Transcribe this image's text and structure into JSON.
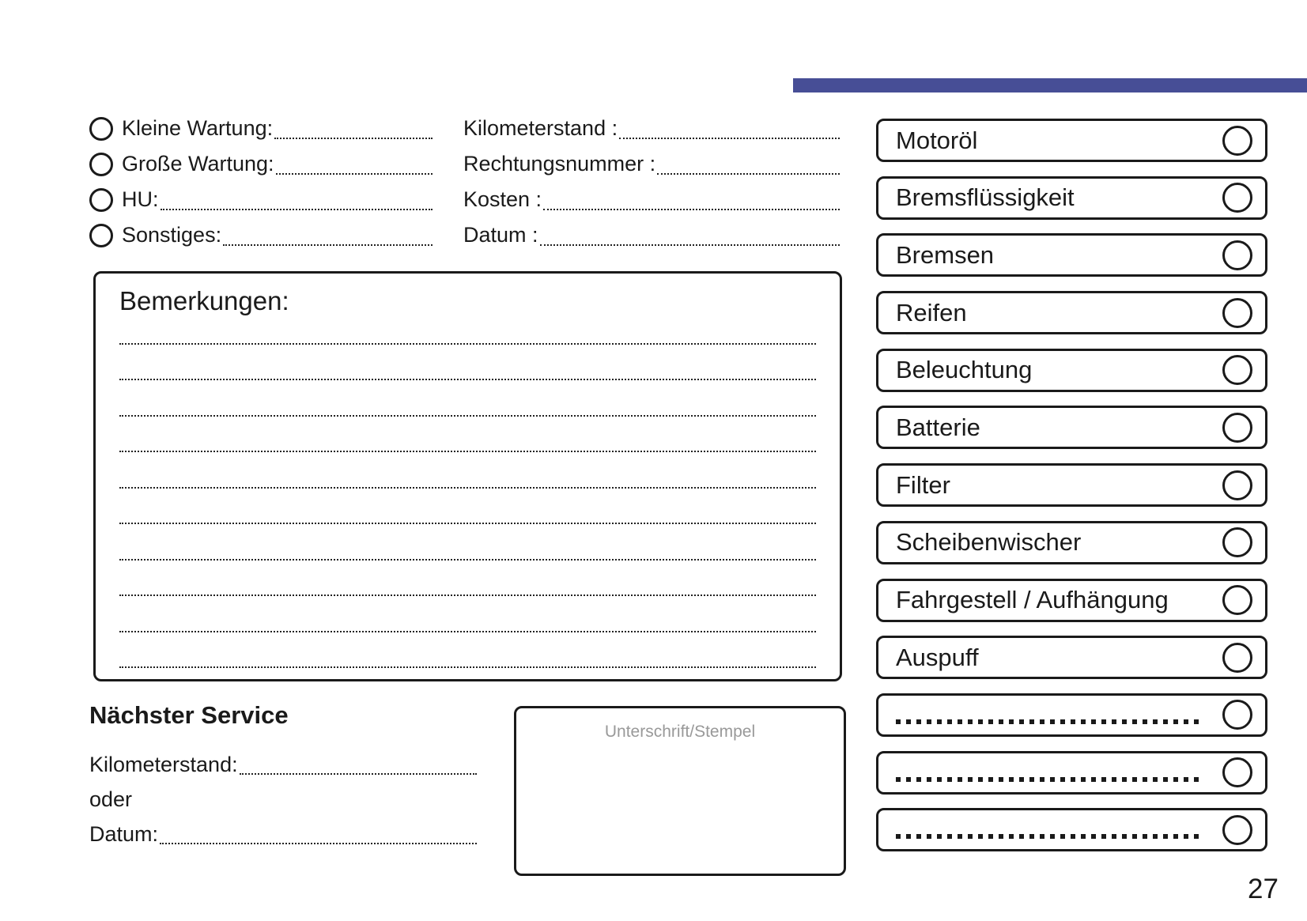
{
  "accent_color": "#474e96",
  "service_types": {
    "items": [
      {
        "label": "Kleine Wartung:"
      },
      {
        "label": "Große Wartung:"
      },
      {
        "label": "HU:"
      },
      {
        "label": "Sonstiges:"
      }
    ]
  },
  "invoice_fields": {
    "items": [
      {
        "label": "Kilometerstand :"
      },
      {
        "label": "Rechtungsnummer :"
      },
      {
        "label": "Kosten :"
      },
      {
        "label": "Datum :"
      }
    ]
  },
  "remarks": {
    "title": "Bemerkungen:",
    "blank_lines": 10
  },
  "next_service": {
    "title": "Nächster Service",
    "odometer_label": "Kilometerstand:",
    "or_label": "oder",
    "date_label": "Datum:"
  },
  "signature": {
    "label": "Unterschrift/Stempel"
  },
  "checklist": {
    "items": [
      {
        "label": "Motoröl",
        "blank": false
      },
      {
        "label": "Bremsflüssigkeit",
        "blank": false
      },
      {
        "label": "Bremsen",
        "blank": false
      },
      {
        "label": "Reifen",
        "blank": false
      },
      {
        "label": "Beleuchtung",
        "blank": false
      },
      {
        "label": "Batterie",
        "blank": false
      },
      {
        "label": "Filter",
        "blank": false
      },
      {
        "label": "Scheibenwischer",
        "blank": false
      },
      {
        "label": "Fahrgestell / Aufhängung",
        "blank": false
      },
      {
        "label": "Auspuff",
        "blank": false
      },
      {
        "label": "",
        "blank": true
      },
      {
        "label": "",
        "blank": true
      },
      {
        "label": "",
        "blank": true
      }
    ]
  },
  "page_number": "27"
}
